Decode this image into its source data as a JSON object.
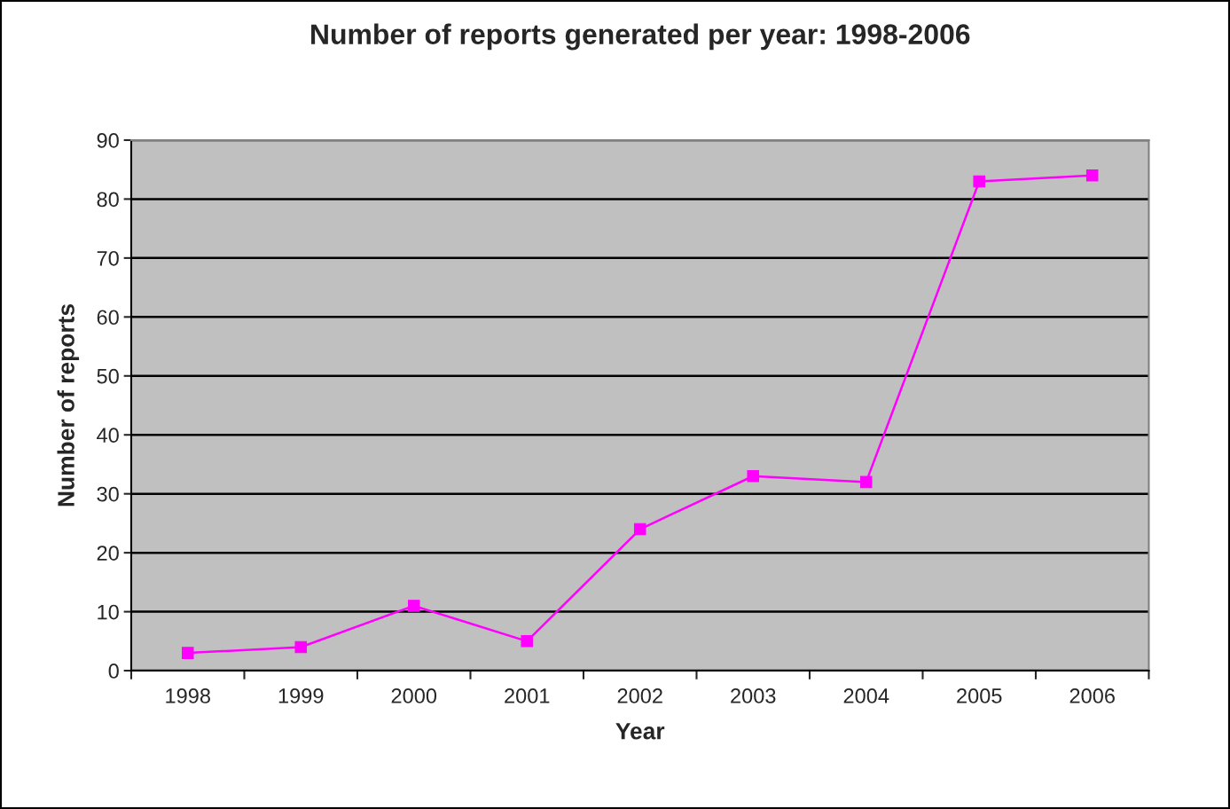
{
  "chart_data": {
    "type": "line",
    "title": "Number of reports generated per year: 1998-2006",
    "xlabel": "Year",
    "ylabel": "Number of reports",
    "categories": [
      "1998",
      "1999",
      "2000",
      "2001",
      "2002",
      "2003",
      "2004",
      "2005",
      "2006"
    ],
    "series": [
      {
        "color": "#ff00ff",
        "values": [
          3,
          4,
          11,
          5,
          24,
          33,
          32,
          83,
          84
        ]
      }
    ],
    "ylim": [
      0,
      90
    ],
    "yticks": [
      0,
      10,
      20,
      30,
      40,
      50,
      60,
      70,
      80,
      90
    ],
    "grid": "y",
    "legend": false,
    "marker": "square",
    "line_style": "solid"
  }
}
